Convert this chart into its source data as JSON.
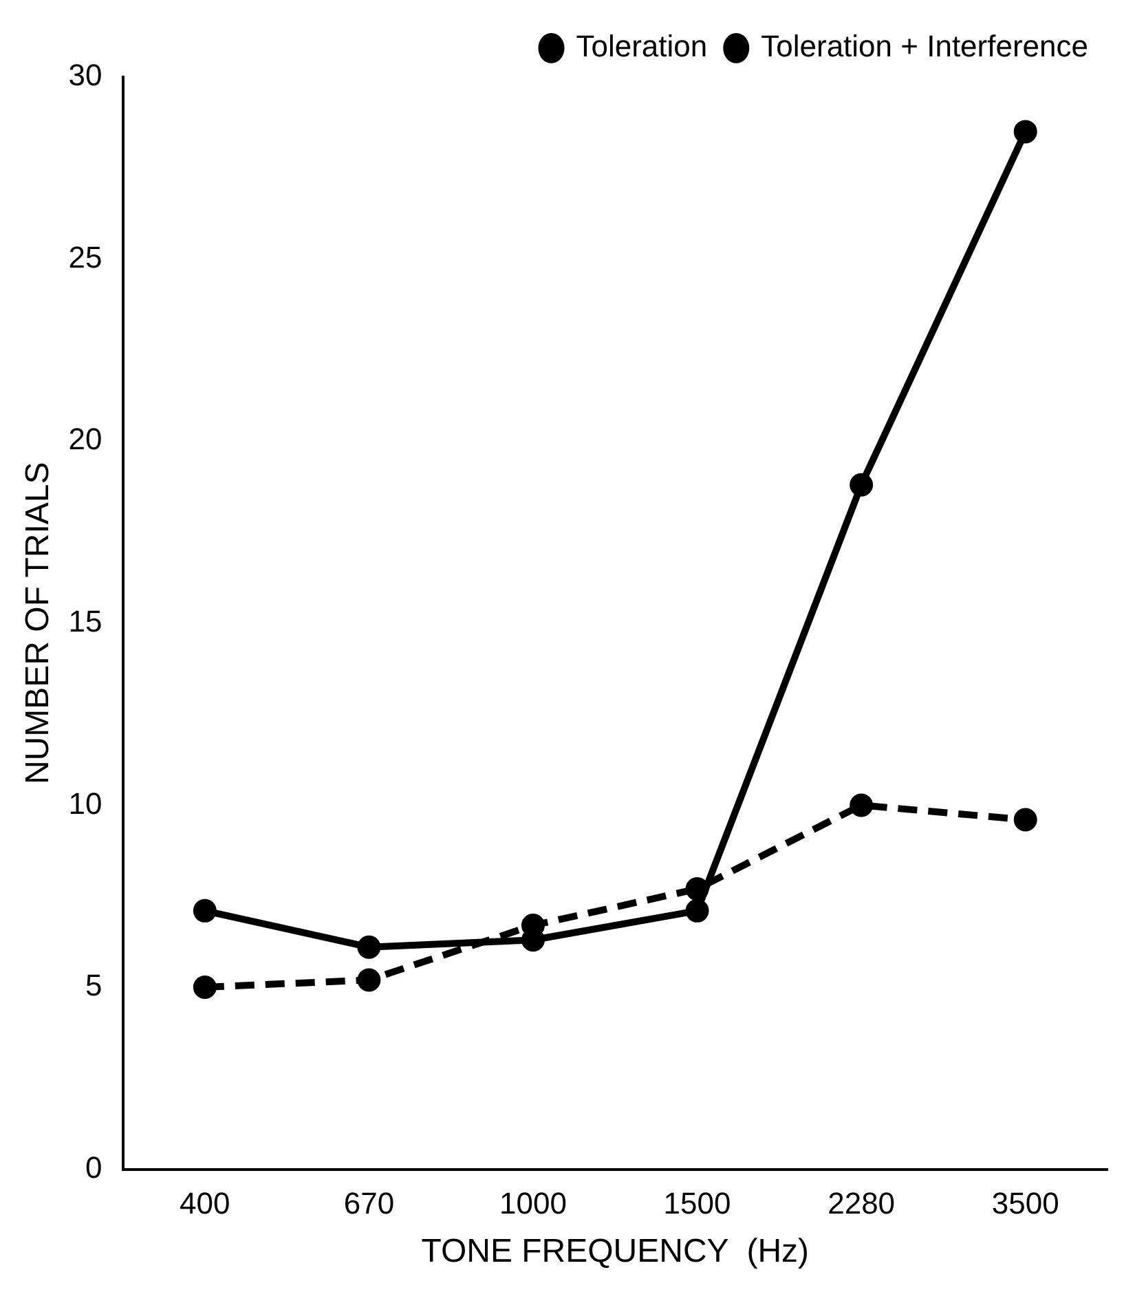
{
  "chart_data": {
    "type": "line",
    "xlabel": "TONE FREQUENCY  (Hz)",
    "ylabel": "NUMBER OF TRIALS",
    "categories": [
      "400",
      "670",
      "1000",
      "1500",
      "2280",
      "3500"
    ],
    "series": [
      {
        "name": "Toleration",
        "color": "#000000",
        "line_style": "solid",
        "values": [
          7.1,
          6.1,
          6.3,
          7.1,
          18.8,
          28.5
        ]
      },
      {
        "name": "Toleration + Interference",
        "color": "#000000",
        "line_style": "dashed",
        "values": [
          5.0,
          5.2,
          6.7,
          7.7,
          10.0,
          9.6
        ]
      }
    ],
    "ylim": [
      0,
      30
    ],
    "yticks": [
      0,
      5,
      10,
      15,
      20,
      25,
      30
    ],
    "grid": false,
    "legend": "top right",
    "marker": "circle"
  }
}
